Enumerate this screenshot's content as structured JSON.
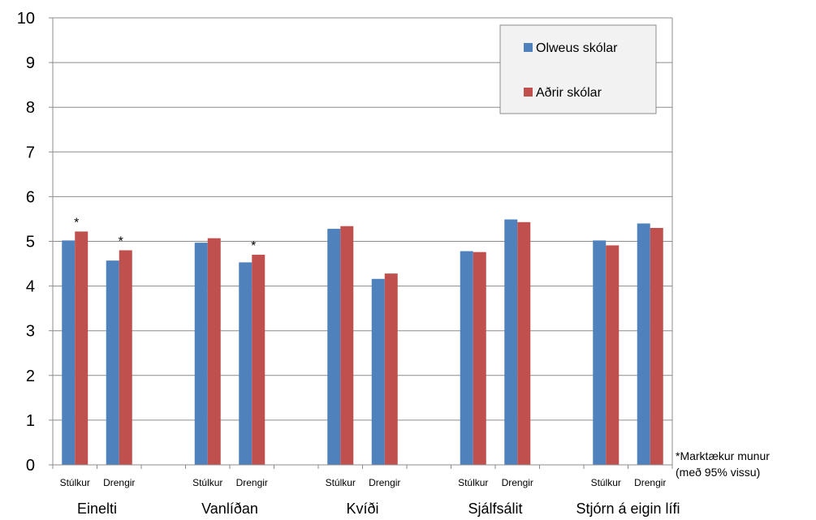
{
  "chart_data": {
    "type": "bar",
    "title": "",
    "xlabel": "",
    "ylabel": "",
    "ylim": [
      0,
      10
    ],
    "yticks": [
      0,
      1,
      2,
      3,
      4,
      5,
      6,
      7,
      8,
      9,
      10
    ],
    "grid": true,
    "legend_position": "top-right",
    "groups": [
      {
        "label": "Einelti",
        "subcategories": [
          "Stúlkur",
          "Drengir"
        ]
      },
      {
        "label": "Vanlíðan",
        "subcategories": [
          "Stúlkur",
          "Drengir"
        ]
      },
      {
        "label": "Kvíði",
        "subcategories": [
          "Stúlkur",
          "Drengir"
        ]
      },
      {
        "label": "Sjálfsálit",
        "subcategories": [
          "Stúlkur",
          "Drengir"
        ]
      },
      {
        "label": "Stjórn á eigin lífi",
        "subcategories": [
          "Stúlkur",
          "Drengir"
        ]
      }
    ],
    "series": [
      {
        "name": "Olweus skólar",
        "color": "#4f81bd",
        "values": [
          5.02,
          4.57,
          4.97,
          4.53,
          5.28,
          4.16,
          4.78,
          5.49,
          5.02,
          5.4
        ]
      },
      {
        "name": "Aðrir skólar",
        "color": "#c0504d",
        "values": [
          5.22,
          4.8,
          5.07,
          4.7,
          5.34,
          4.28,
          4.76,
          5.43,
          4.91,
          5.3
        ]
      }
    ],
    "significance_marker": "*",
    "significant_indices": [
      0,
      1,
      3
    ],
    "annotation": {
      "line1": "*Marktækur munur",
      "line2": "(með 95% vissu)"
    }
  }
}
